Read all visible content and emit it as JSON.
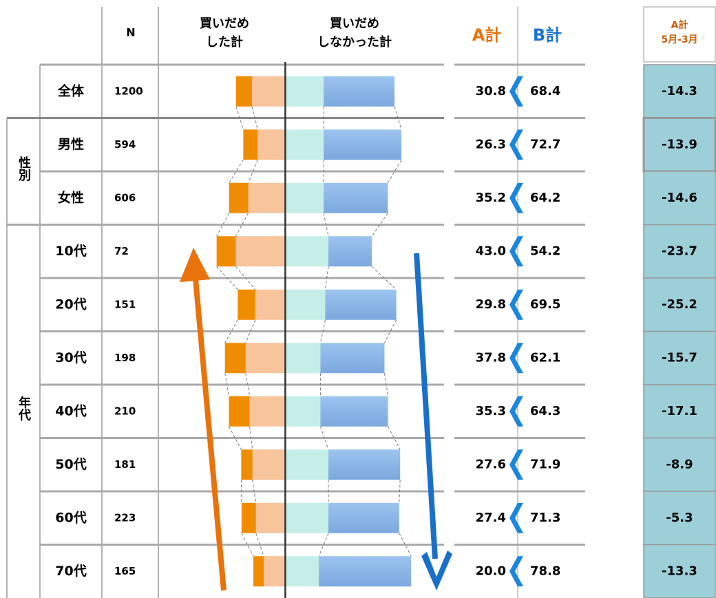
{
  "chart_data": {
    "type": "diverging_bar",
    "columns": {
      "n": "N",
      "bought": [
        "買いだめ",
        "した計"
      ],
      "not_bought": [
        "買いだめ",
        "しなかった計"
      ],
      "a": "A計",
      "b": "B計",
      "diff": [
        "A計",
        "5月-3月"
      ]
    },
    "groups": [
      "性別",
      "年代"
    ],
    "categories": [
      "全体",
      "男性",
      "女性",
      "10代",
      "20代",
      "30代",
      "40代",
      "50代",
      "60代",
      "70代"
    ],
    "n": [
      1200,
      594,
      606,
      72,
      151,
      198,
      210,
      181,
      223,
      165
    ],
    "xlim": [
      -70,
      80
    ],
    "left_series": [
      {
        "color": "#f7c49c",
        "values": [
          20.8,
          17.3,
          23.2,
          31,
          18.8,
          24.8,
          22.3,
          20.6,
          18.4,
          13.5
        ]
      },
      {
        "color": "#f08c00",
        "values": [
          10,
          9,
          12,
          12,
          11,
          13,
          13,
          7,
          9,
          6.5
        ]
      }
    ],
    "right_series": [
      {
        "color": "#c6eee9",
        "values": [
          24,
          24,
          24,
          27,
          25,
          22,
          22,
          27,
          27,
          21
        ]
      },
      {
        "color": "#8fb9ea",
        "values": [
          44.4,
          48.7,
          40.2,
          27.2,
          44.5,
          40.1,
          42.3,
          44.9,
          44.3,
          57.8
        ]
      }
    ],
    "a_total": {
      "values": [
        30.8,
        26.3,
        35.2,
        43.0,
        29.8,
        37.8,
        35.3,
        27.6,
        27.4,
        20.0
      ],
      "value_labels": [
        "30.8",
        "26.3",
        "35.2",
        "43.0",
        "29.8",
        "37.8",
        "35.3",
        "27.6",
        "27.4",
        "20.0"
      ]
    },
    "b_total": {
      "values": [
        68.4,
        72.7,
        64.2,
        54.2,
        69.5,
        62.1,
        64.3,
        71.9,
        71.3,
        78.8
      ],
      "value_labels": [
        "68.4",
        "72.7",
        "64.2",
        "54.2",
        "69.5",
        "62.1",
        "64.3",
        "71.9",
        "71.3",
        "78.8"
      ]
    },
    "diff": [
      -14.3,
      -13.9,
      -14.6,
      -23.7,
      -25.2,
      -15.7,
      -17.1,
      -8.9,
      -5.3,
      -13.3
    ]
  }
}
